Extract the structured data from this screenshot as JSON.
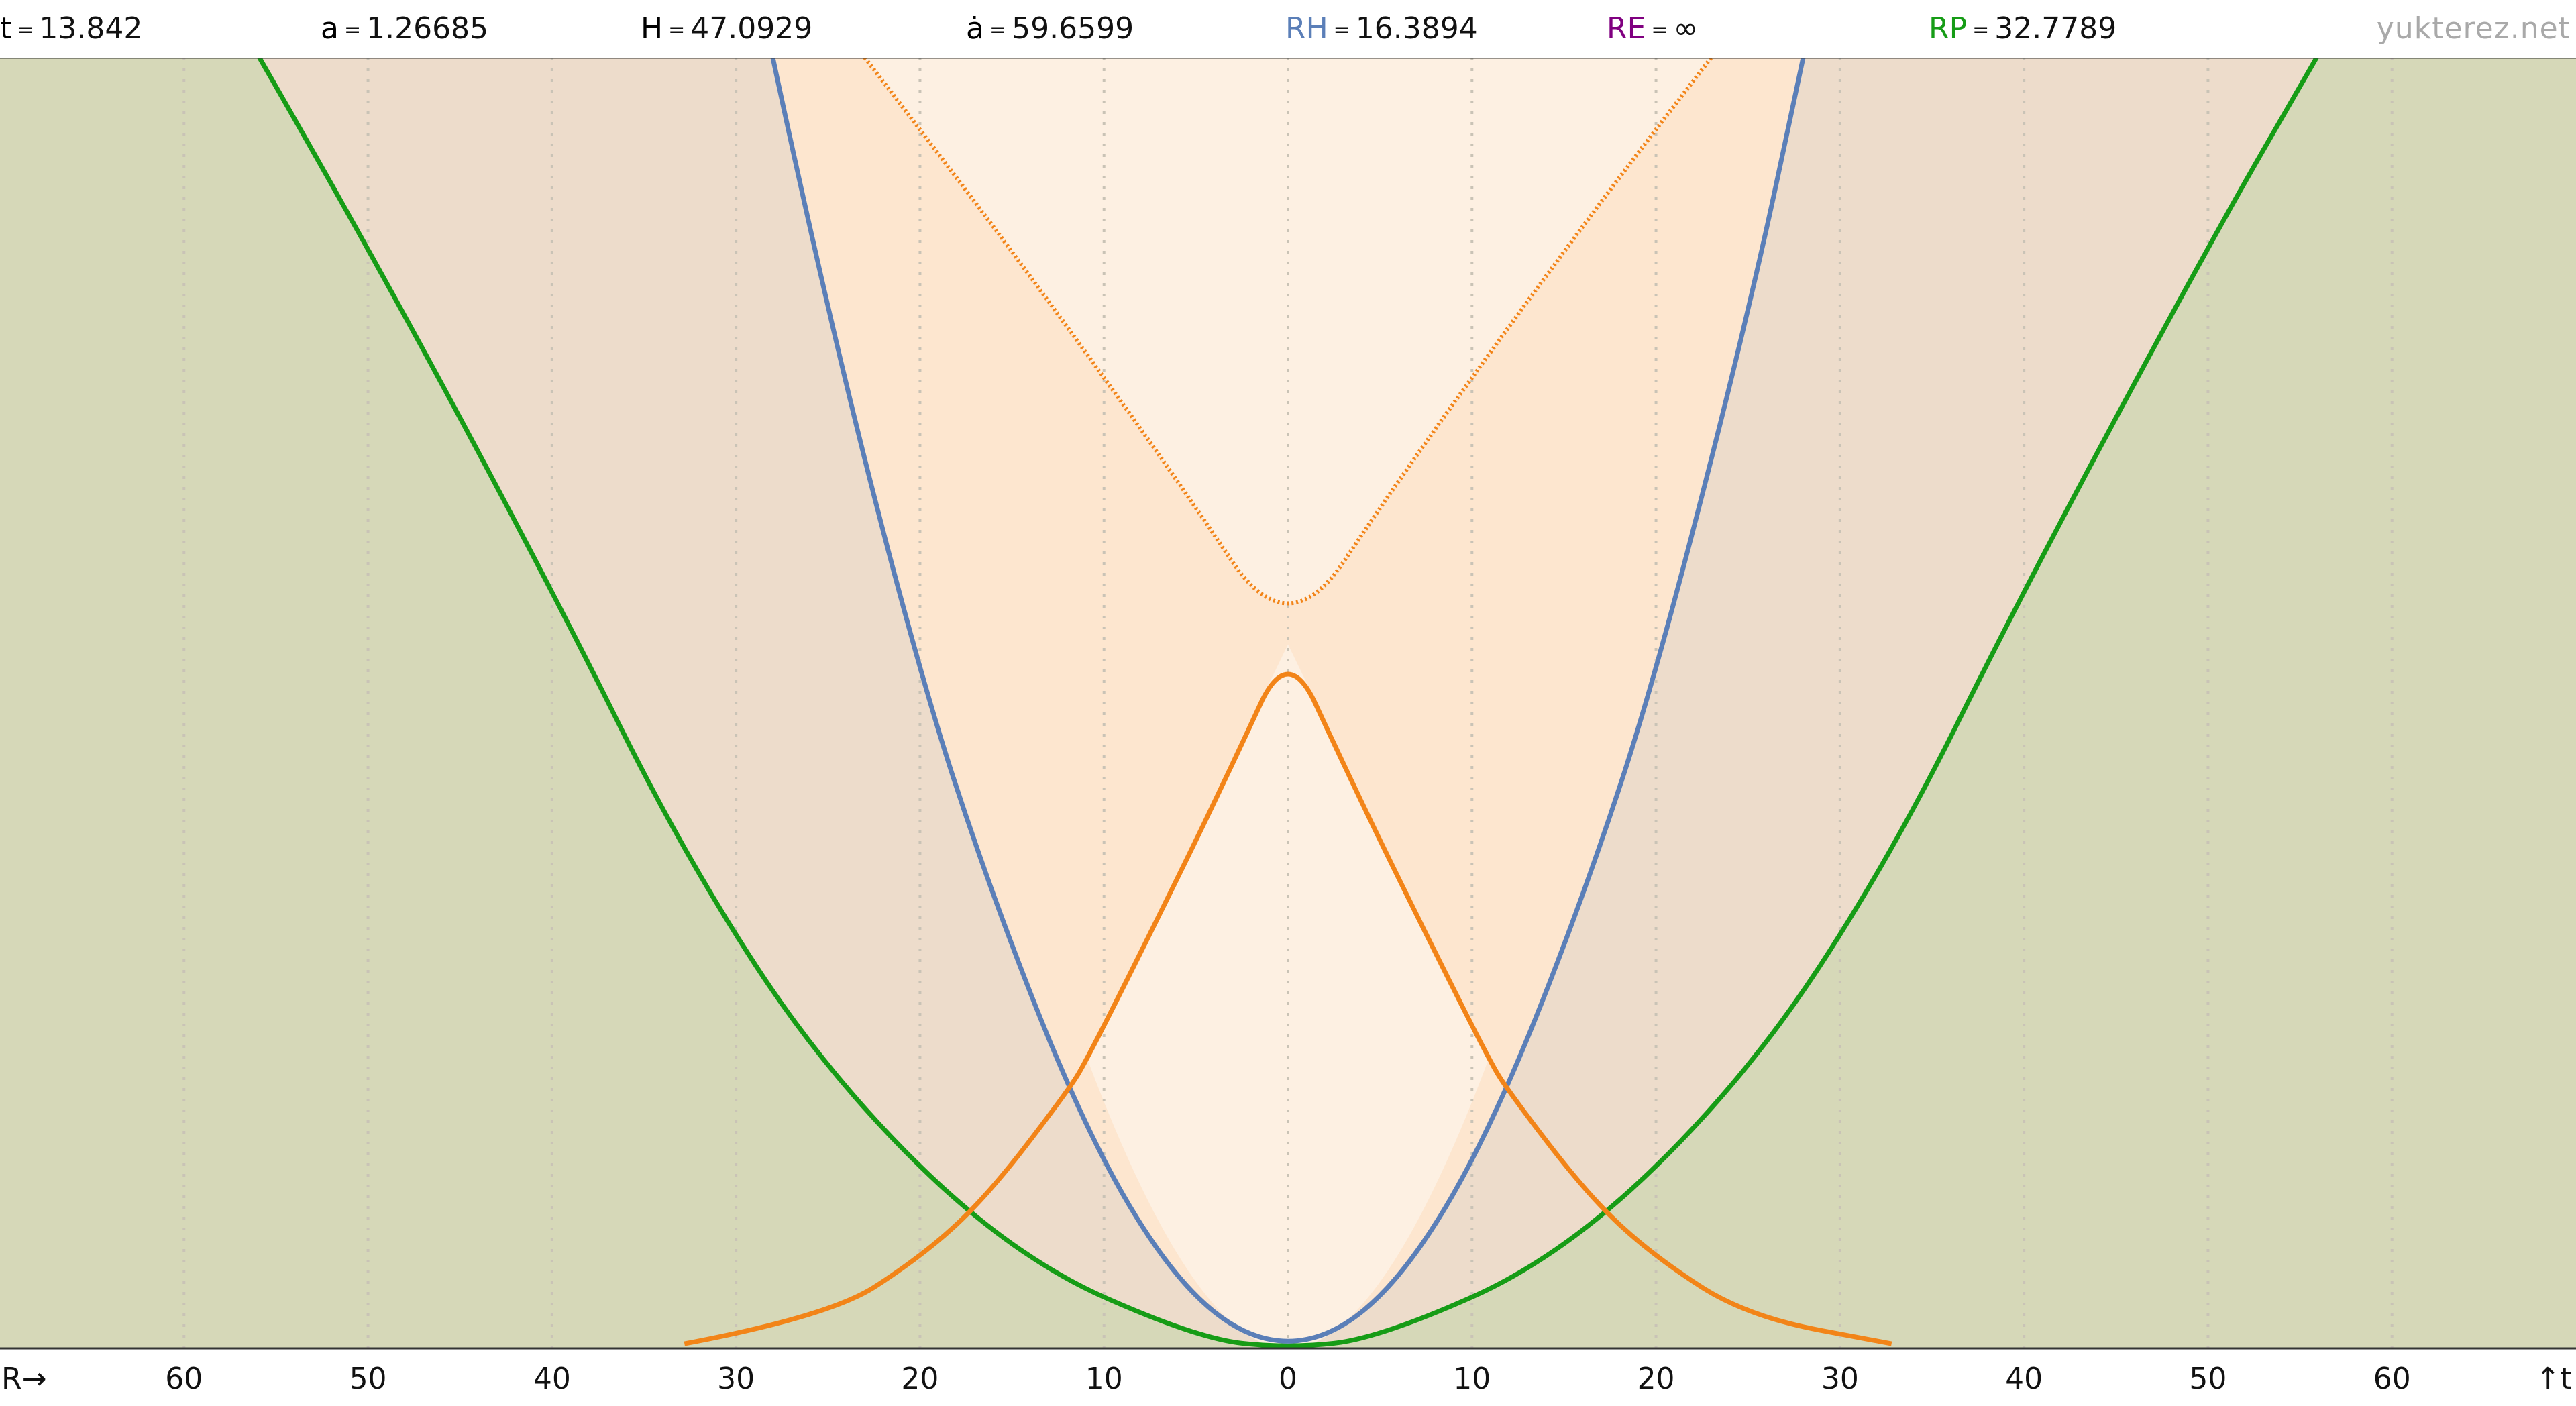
{
  "header": {
    "stats": [
      {
        "label": "t",
        "value": "13.842",
        "color": "#000000"
      },
      {
        "label": "a",
        "value": "1.26685",
        "color": "#000000"
      },
      {
        "label": "H",
        "value": "47.0929",
        "color": "#000000"
      },
      {
        "label": "ȧ",
        "value": "59.6599",
        "color": "#000000"
      },
      {
        "label": "RH",
        "value": "16.3894",
        "color": "#5b7fb8"
      },
      {
        "label": "RE",
        "value": "∞",
        "color": "#800080"
      },
      {
        "label": "RP",
        "value": "32.7789",
        "color": "#169c16"
      }
    ],
    "equals": "=",
    "brand": "yukterez.net"
  },
  "chart_data": {
    "type": "line",
    "xlabel": "R→",
    "ylabel": "↑t",
    "xlim": [
      -70,
      70
    ],
    "x_ticks": [
      "60",
      "50",
      "40",
      "30",
      "20",
      "10",
      "0",
      "10",
      "20",
      "30",
      "40",
      "50",
      "60"
    ],
    "x_tick_values": [
      -60,
      -50,
      -40,
      -30,
      -20,
      -10,
      0,
      10,
      20,
      30,
      40,
      50,
      60
    ],
    "vertical_grid": "dotted",
    "t_now": 13.842,
    "series": [
      {
        "style": "solid",
        "color": "#169c16",
        "x": [
          -55.9,
          -50,
          -40,
          -32.78,
          -25,
          -15,
          -5,
          0,
          5,
          15,
          25,
          32.78,
          40,
          50,
          55.9
        ],
        "y": [
          13.842,
          11.82,
          8.14,
          5.27,
          2.92,
          0.99,
          0.11,
          0,
          0.11,
          0.99,
          2.92,
          5.27,
          8.14,
          11.82,
          13.842
        ]
      },
      {
        "style": "solid",
        "color": "#5b7fb8",
        "x": [
          -28.0,
          -25,
          -20,
          -16.39,
          -12,
          -8,
          -4,
          0,
          4,
          8,
          12,
          16.39,
          20,
          25,
          28.0
        ],
        "y": [
          13.842,
          11.07,
          7.22,
          5.03,
          2.79,
          1.26,
          0.31,
          0,
          0.31,
          1.26,
          2.79,
          5.03,
          7.22,
          11.07,
          13.842
        ]
      },
      {
        "style": "solid",
        "color": "#f28418",
        "x": [
          -32.8,
          -25,
          -20,
          -16.39,
          -12,
          -10.9,
          -6,
          -3,
          0,
          3,
          6,
          10.9,
          12,
          16.39,
          20,
          25,
          32.8
        ],
        "y": [
          0.05,
          0.34,
          0.97,
          1.62,
          2.75,
          3.1,
          5.04,
          6.27,
          7.55,
          6.27,
          5.04,
          3.1,
          2.75,
          1.62,
          0.97,
          0.34,
          0.05
        ]
      },
      {
        "style": "dotted",
        "color": "#f28418",
        "x": [
          -23.0,
          -18,
          -12,
          -6,
          0,
          6,
          12,
          18,
          23.0
        ],
        "y": [
          13.842,
          12.56,
          10.96,
          9.31,
          7.55,
          9.31,
          10.96,
          12.56,
          13.842
        ]
      }
    ],
    "regions": {
      "outside": "#d6d8b8",
      "between_green_and_blue": "#eddccb",
      "between_blue_and_dotted": "#fde6cf",
      "inside_dotted": "#fdf0e2"
    }
  }
}
